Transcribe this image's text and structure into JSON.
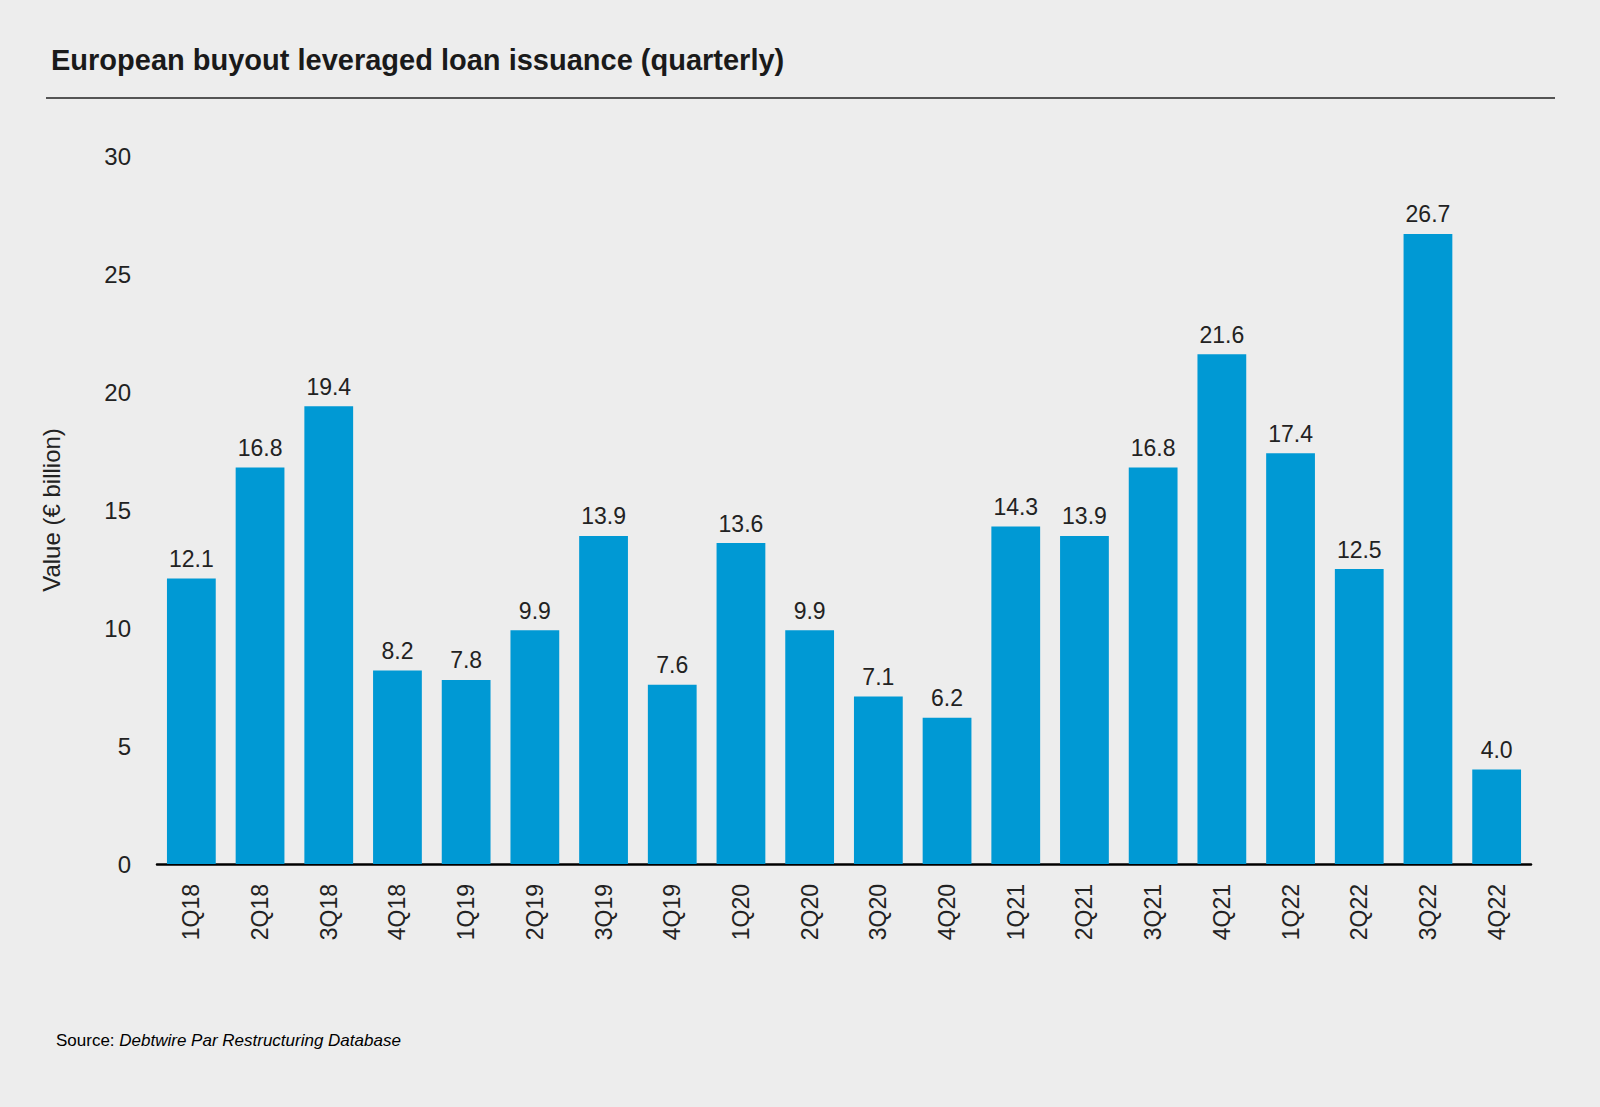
{
  "chart_data": {
    "type": "bar",
    "title": "European buyout leveraged loan issuance (quarterly)",
    "y_label": "Value (€ billion)",
    "source": "Source: Debtwire Par Restructuring Database",
    "categories": [
      "1Q18",
      "2Q18",
      "3Q18",
      "4Q18",
      "1Q19",
      "2Q19",
      "3Q19",
      "4Q19",
      "1Q20",
      "2Q20",
      "3Q20",
      "4Q20",
      "1Q21",
      "2Q21",
      "3Q21",
      "4Q21",
      "1Q22",
      "2Q22",
      "3Q22",
      "4Q22"
    ],
    "values": [
      12.1,
      16.8,
      19.4,
      8.2,
      7.8,
      9.9,
      13.9,
      7.6,
      13.6,
      9.9,
      7.1,
      6.2,
      14.3,
      13.9,
      16.8,
      21.6,
      17.4,
      12.5,
      26.7,
      4.0
    ],
    "value_labels": [
      "12.1",
      "16.8",
      "19.4",
      "8.2",
      "7.8",
      "9.9",
      "13.9",
      "7.6",
      "13.6",
      "9.9",
      "7.1",
      "6.2",
      "14.3",
      "13.9",
      "16.8",
      "21.6",
      "17.4",
      "12.5",
      "26.7",
      "4.0"
    ],
    "color": "#0099d4",
    "ylim": [
      0,
      30
    ],
    "yticks": [
      0,
      5,
      10,
      15,
      20,
      25,
      30
    ],
    "grid": false,
    "data_labels": true
  }
}
